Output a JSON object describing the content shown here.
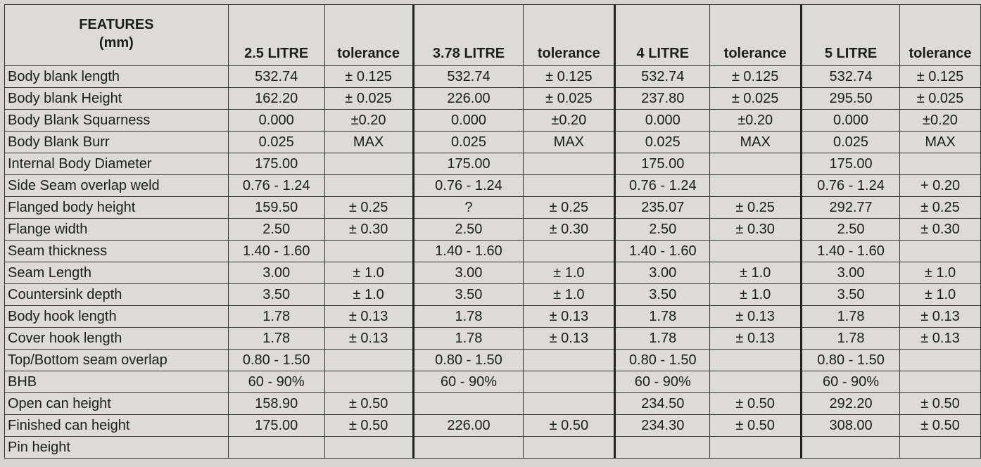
{
  "header": {
    "features_line1": "FEATURES",
    "features_line2": "(mm)",
    "columns": [
      "2.5 LITRE",
      "tolerance",
      "3.78 LITRE",
      "tolerance",
      "4 LITRE",
      "tolerance",
      "5 LITRE",
      "tolerance"
    ]
  },
  "rows": [
    {
      "feature": "Body blank length",
      "values": [
        "532.74",
        "± 0.125",
        "532.74",
        "± 0.125",
        "532.74",
        "± 0.125",
        "532.74",
        "± 0.125"
      ]
    },
    {
      "feature": "Body blank Height",
      "values": [
        "162.20",
        "± 0.025",
        "226.00",
        "± 0.025",
        "237.80",
        "± 0.025",
        "295.50",
        "± 0.025"
      ]
    },
    {
      "feature": "Body Blank Squarness",
      "values": [
        "0.000",
        "±0.20",
        "0.000",
        "±0.20",
        "0.000",
        "±0.20",
        "0.000",
        "±0.20"
      ]
    },
    {
      "feature": "Body Blank Burr",
      "values": [
        "0.025",
        "MAX",
        "0.025",
        "MAX",
        "0.025",
        "MAX",
        "0.025",
        "MAX"
      ]
    },
    {
      "feature": "Internal Body Diameter",
      "values": [
        "175.00",
        "",
        "175.00",
        "",
        "175.00",
        "",
        "175.00",
        ""
      ]
    },
    {
      "feature": "Side Seam overlap weld",
      "values": [
        "0.76 - 1.24",
        "",
        "0.76 - 1.24",
        "",
        "0.76 - 1.24",
        "",
        "0.76 - 1.24",
        "+ 0.20"
      ]
    },
    {
      "feature": "Flanged body height",
      "values": [
        "159.50",
        "± 0.25",
        "?",
        "± 0.25",
        "235.07",
        "± 0.25",
        "292.77",
        "± 0.25"
      ]
    },
    {
      "feature": "Flange width",
      "values": [
        "2.50",
        "± 0.30",
        "2.50",
        "± 0.30",
        "2.50",
        "± 0.30",
        "2.50",
        "± 0.30"
      ]
    },
    {
      "feature": "Seam thickness",
      "values": [
        "1.40 - 1.60",
        "",
        "1.40 - 1.60",
        "",
        "1.40 - 1.60",
        "",
        "1.40 - 1.60",
        ""
      ]
    },
    {
      "feature": "Seam Length",
      "values": [
        "3.00",
        "± 1.0",
        "3.00",
        "± 1.0",
        "3.00",
        "± 1.0",
        "3.00",
        "± 1.0"
      ]
    },
    {
      "feature": "Countersink depth",
      "values": [
        "3.50",
        "± 1.0",
        "3.50",
        "± 1.0",
        "3.50",
        "± 1.0",
        "3.50",
        "± 1.0"
      ]
    },
    {
      "feature": "Body hook length",
      "values": [
        "1.78",
        "± 0.13",
        "1.78",
        "± 0.13",
        "1.78",
        "± 0.13",
        "1.78",
        "± 0.13"
      ]
    },
    {
      "feature": "Cover hook length",
      "values": [
        "1.78",
        "± 0.13",
        "1.78",
        "± 0.13",
        "1.78",
        "± 0.13",
        "1.78",
        "± 0.13"
      ]
    },
    {
      "feature": "Top/Bottom seam overlap",
      "values": [
        "0.80 - 1.50",
        "",
        "0.80 - 1.50",
        "",
        "0.80 - 1.50",
        "",
        "0.80 - 1.50",
        ""
      ]
    },
    {
      "feature": "BHB",
      "values": [
        "60 - 90%",
        "",
        "60 - 90%",
        "",
        "60 - 90%",
        "",
        "60 - 90%",
        ""
      ]
    },
    {
      "feature": "Open can height",
      "values": [
        "158.90",
        "± 0.50",
        "",
        "",
        "234.50",
        "± 0.50",
        "292.20",
        "± 0.50"
      ]
    },
    {
      "feature": "Finished can height",
      "values": [
        "175.00",
        "± 0.50",
        "226.00",
        "± 0.50",
        "234.30",
        "± 0.50",
        "308.00",
        "± 0.50"
      ]
    },
    {
      "feature": "Pin height",
      "values": [
        "",
        "",
        "",
        "",
        "",
        "",
        "",
        ""
      ]
    }
  ]
}
